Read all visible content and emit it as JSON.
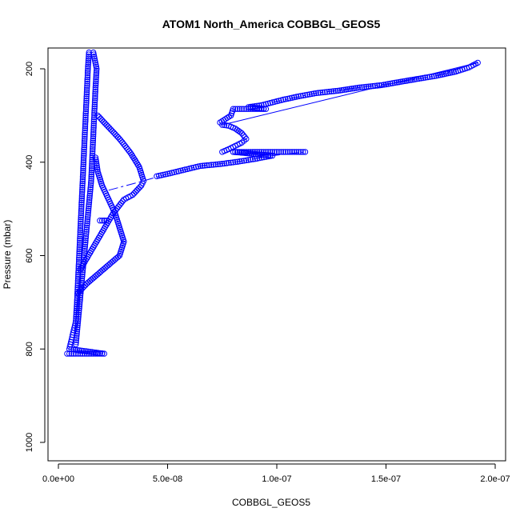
{
  "chart_data": {
    "type": "scatter",
    "title": "ATOM1 North_America COBBGL_GEOS5",
    "xlabel": "COBBGL_GEOS5",
    "ylabel": "Pressure (mbar)",
    "xlim": [
      0,
      2e-07
    ],
    "ylim": [
      1040,
      160
    ],
    "y_inverted": true,
    "grid": false,
    "legend": "none",
    "x_ticks": [
      {
        "value": 0,
        "label": "0.0e+00"
      },
      {
        "value": 5e-08,
        "label": "5.0e-08"
      },
      {
        "value": 1e-07,
        "label": "1.0e-07"
      },
      {
        "value": 1.5e-07,
        "label": "1.5e-07"
      },
      {
        "value": 2e-07,
        "label": "2.0e-07"
      }
    ],
    "y_ticks": [
      {
        "value": 200,
        "label": "200"
      },
      {
        "value": 400,
        "label": "400"
      },
      {
        "value": 600,
        "label": "600"
      },
      {
        "value": 800,
        "label": "800"
      },
      {
        "value": 1000,
        "label": "1000"
      }
    ],
    "series": [
      {
        "color": "#0000ff",
        "points": [
          [
            4e-09,
            810
          ],
          [
            6e-09,
            810
          ],
          [
            8e-09,
            810
          ],
          [
            1e-08,
            810
          ],
          [
            1.2e-08,
            810
          ],
          [
            1.4e-08,
            810
          ],
          [
            1.6e-08,
            810
          ],
          [
            1.8e-08,
            810
          ],
          [
            2e-08,
            810
          ],
          [
            2.1e-08,
            810
          ],
          [
            5e-09,
            800
          ],
          [
            6e-09,
            780
          ],
          [
            7e-09,
            760
          ],
          [
            8e-09,
            740
          ],
          [
            8.5e-09,
            700
          ],
          [
            9e-09,
            650
          ],
          [
            9.5e-09,
            600
          ],
          [
            1e-08,
            550
          ],
          [
            1.05e-08,
            500
          ],
          [
            1.1e-08,
            450
          ],
          [
            1.15e-08,
            400
          ],
          [
            1.2e-08,
            350
          ],
          [
            1.25e-08,
            300
          ],
          [
            1.3e-08,
            250
          ],
          [
            1.35e-08,
            200
          ],
          [
            1.4e-08,
            165
          ],
          [
            8e-09,
            790
          ],
          [
            9e-09,
            740
          ],
          [
            1e-08,
            690
          ],
          [
            1.1e-08,
            640
          ],
          [
            1.2e-08,
            590
          ],
          [
            1.3e-08,
            540
          ],
          [
            1.4e-08,
            490
          ],
          [
            1.5e-08,
            440
          ],
          [
            1.55e-08,
            390
          ],
          [
            1.6e-08,
            340
          ],
          [
            1.65e-08,
            290
          ],
          [
            1.7e-08,
            240
          ],
          [
            1.75e-08,
            200
          ],
          [
            1.6e-08,
            165
          ],
          [
            9e-09,
            680
          ],
          [
            1.3e-08,
            660
          ],
          [
            1.8e-08,
            640
          ],
          [
            2.3e-08,
            620
          ],
          [
            2.8e-08,
            600
          ],
          [
            3e-08,
            570
          ],
          [
            2.8e-08,
            540
          ],
          [
            2.6e-08,
            510
          ],
          [
            2.3e-08,
            480
          ],
          [
            2e-08,
            450
          ],
          [
            1.8e-08,
            420
          ],
          [
            1.7e-08,
            390
          ],
          [
            1e-08,
            630
          ],
          [
            1.5e-08,
            590
          ],
          [
            2e-08,
            550
          ],
          [
            2.5e-08,
            510
          ],
          [
            3e-08,
            480
          ],
          [
            3.4e-08,
            470
          ],
          [
            3.8e-08,
            450
          ],
          [
            3.9e-08,
            440
          ],
          [
            3.7e-08,
            410
          ],
          [
            3.3e-08,
            380
          ],
          [
            2.8e-08,
            350
          ],
          [
            2.2e-08,
            320
          ],
          [
            1.8e-08,
            300
          ],
          [
            2.1e-08,
            525
          ],
          [
            2.2e-08,
            525
          ],
          [
            1.9e-08,
            525
          ],
          [
            4.5e-08,
            430
          ],
          [
            5e-08,
            425
          ],
          [
            5.7e-08,
            417
          ],
          [
            6.5e-08,
            408
          ],
          [
            7.4e-08,
            404
          ],
          [
            8.2e-08,
            399
          ],
          [
            9e-08,
            393
          ],
          [
            9.8e-08,
            386
          ],
          [
            8e-08,
            378
          ],
          [
            8.5e-08,
            378
          ],
          [
            9e-08,
            378
          ],
          [
            9.5e-08,
            378
          ],
          [
            1e-07,
            378
          ],
          [
            1.05e-07,
            378
          ],
          [
            1.1e-07,
            378
          ],
          [
            1.13e-07,
            378
          ],
          [
            7.5e-08,
            378
          ],
          [
            7.8e-08,
            372
          ],
          [
            8.1e-08,
            365
          ],
          [
            8.4e-08,
            358
          ],
          [
            8.6e-08,
            350
          ],
          [
            8.4e-08,
            338
          ],
          [
            8.1e-08,
            328
          ],
          [
            7.8e-08,
            322
          ],
          [
            7.5e-08,
            320
          ],
          [
            7.4e-08,
            315
          ],
          [
            7.9e-08,
            300
          ],
          [
            8e-08,
            286
          ],
          [
            8.5e-08,
            286
          ],
          [
            9e-08,
            286
          ],
          [
            9.5e-08,
            286
          ],
          [
            8.7e-08,
            282
          ],
          [
            9.3e-08,
            278
          ],
          [
            9.8e-08,
            272
          ],
          [
            1.03e-07,
            266
          ],
          [
            1.1e-07,
            259
          ],
          [
            1.18e-07,
            252
          ],
          [
            1.28e-07,
            247
          ],
          [
            1.38e-07,
            240
          ],
          [
            1.48e-07,
            235
          ],
          [
            1.54e-07,
            230
          ],
          [
            1.64e-07,
            222
          ],
          [
            1.73e-07,
            215
          ],
          [
            1.82e-07,
            206
          ],
          [
            1.88e-07,
            197
          ],
          [
            1.92e-07,
            187
          ]
        ]
      }
    ],
    "lines": [
      {
        "color": "#0000ff",
        "dashed": true,
        "points": [
          [
            2.3e-08,
            460
          ],
          [
            3.9e-08,
            440
          ],
          [
            5e-08,
            425
          ],
          [
            6.5e-08,
            408
          ],
          [
            8.2e-08,
            399
          ],
          [
            9.8e-08,
            386
          ],
          [
            1.13e-07,
            378
          ]
        ]
      },
      {
        "color": "#0000ff",
        "dashed": false,
        "points": [
          [
            7.5e-08,
            320
          ],
          [
            1.92e-07,
            187
          ]
        ]
      },
      {
        "color": "#0000ff",
        "dashed": true,
        "points": [
          [
            9.8e-08,
            272
          ],
          [
            1.18e-07,
            252
          ],
          [
            1.38e-07,
            240
          ],
          [
            1.54e-07,
            230
          ],
          [
            1.73e-07,
            215
          ],
          [
            1.92e-07,
            187
          ]
        ]
      }
    ]
  }
}
